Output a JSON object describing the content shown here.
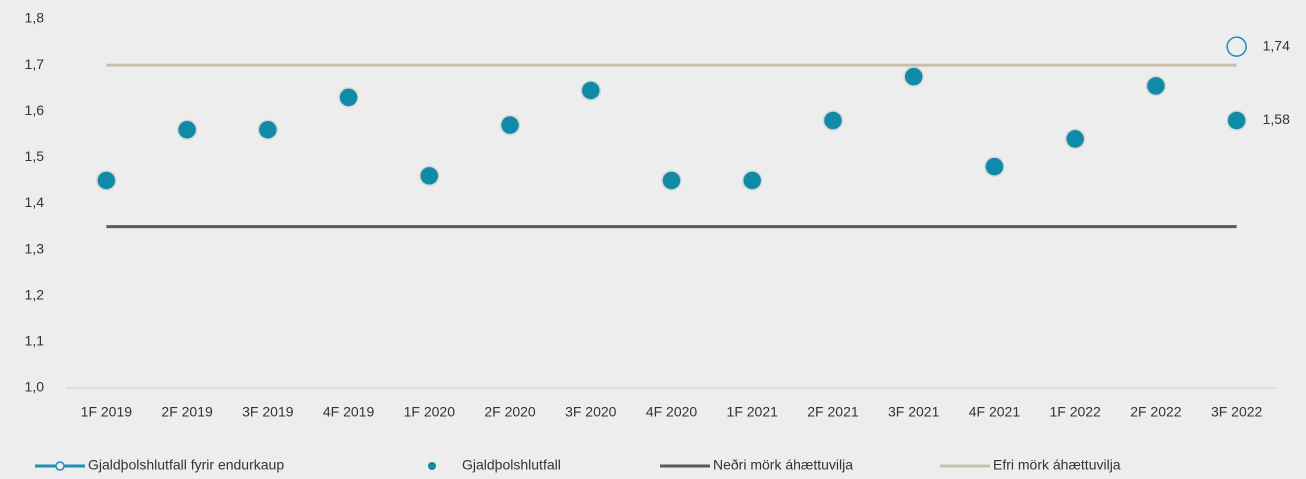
{
  "chart_data": {
    "type": "line",
    "categories": [
      "1F 2019",
      "2F 2019",
      "3F 2019",
      "4F 2019",
      "1F 2020",
      "2F 2020",
      "3F 2020",
      "4F 2020",
      "1F 2021",
      "2F 2021",
      "3F 2021",
      "4F 2021",
      "1F 2022",
      "2F 2022",
      "3F 2022"
    ],
    "series": [
      {
        "name": "Gjaldþolshlutfall fyrir endurkaup",
        "color": "#1a90b3",
        "mark": "circle",
        "values": [
          null,
          null,
          null,
          null,
          null,
          null,
          null,
          null,
          null,
          null,
          null,
          null,
          null,
          null,
          1.74
        ],
        "value_labels": [
          null,
          null,
          null,
          null,
          null,
          null,
          null,
          null,
          null,
          null,
          null,
          null,
          null,
          null,
          "1,74"
        ]
      },
      {
        "name": "Gjaldþolshlutfall",
        "color": "#0f8ba8",
        "mark": "dot",
        "values": [
          1.45,
          1.56,
          1.56,
          1.63,
          1.46,
          1.57,
          1.645,
          1.45,
          1.45,
          1.58,
          1.675,
          1.48,
          1.54,
          1.655,
          1.58
        ],
        "value_labels": [
          null,
          null,
          null,
          null,
          null,
          null,
          null,
          null,
          null,
          null,
          null,
          null,
          null,
          null,
          "1,58"
        ]
      },
      {
        "name": "Neðri mörk áhættuvilja",
        "color": "#595959",
        "mark": "line",
        "values": [
          1.35,
          1.35,
          1.35,
          1.35,
          1.35,
          1.35,
          1.35,
          1.35,
          1.35,
          1.35,
          1.35,
          1.35,
          1.35,
          1.35,
          1.35
        ]
      },
      {
        "name": "Efri mörk áhættuvilja",
        "color": "#c9bfae",
        "mark": "line",
        "values": [
          1.7,
          1.7,
          1.7,
          1.7,
          1.7,
          1.7,
          1.7,
          1.7,
          1.7,
          1.7,
          1.7,
          1.7,
          1.7,
          1.7,
          1.7
        ]
      }
    ],
    "ylim": [
      1.0,
      1.8
    ],
    "yticks": [
      {
        "value": 1.0,
        "label": "1,0"
      },
      {
        "value": 1.1,
        "label": "1,1"
      },
      {
        "value": 1.2,
        "label": "1,2"
      },
      {
        "value": 1.3,
        "label": "1,3"
      },
      {
        "value": 1.4,
        "label": "1,4"
      },
      {
        "value": 1.5,
        "label": "1,5"
      },
      {
        "value": 1.6,
        "label": "1,6"
      },
      {
        "value": 1.7,
        "label": "1,7"
      },
      {
        "value": 1.8,
        "label": "1,8"
      }
    ],
    "grid": false,
    "legend": "bottom"
  }
}
